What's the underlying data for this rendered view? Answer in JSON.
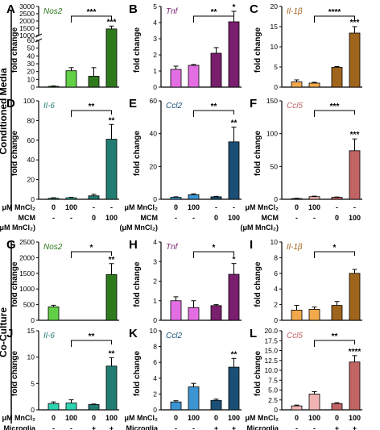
{
  "section_labels": [
    "Conditioned Media",
    "Co-Culture"
  ],
  "row_labels": {
    "mncl2": "μM MnCl₂",
    "mcm": "MCM",
    "mcm_unit": "(μM MnCl₂)",
    "microglia": "Microglia"
  },
  "condition_values": {
    "cm_mncl2": [
      "0",
      "100",
      "-",
      "-"
    ],
    "cm_mcm": [
      "-",
      "-",
      "0",
      "100"
    ],
    "cc_mncl2": [
      "0",
      "100",
      "0",
      "100"
    ],
    "cc_microglia": [
      "-",
      "-",
      "+",
      "+"
    ]
  },
  "ylabel": "fold change",
  "colors": {
    "Nos2": [
      "#62d046",
      "#2f7a1d"
    ],
    "Tnf": [
      "#e36ee3",
      "#7a1e6e"
    ],
    "Il-1b": [
      "#f3a94b",
      "#a0651c"
    ],
    "Il-6": [
      "#2ed3b0",
      "#217d72"
    ],
    "Ccl2": [
      "#3c95d2",
      "#1b4f75"
    ],
    "Ccl5": [
      "#f0b2b2",
      "#c16464"
    ]
  },
  "chart_data": [
    {
      "panel": "A",
      "type": "bar",
      "gene": "Nos2",
      "title": "Nos2",
      "ylabel": "fold change",
      "broken_axis": true,
      "ylim_low": [
        0,
        60
      ],
      "ylim_high": [
        1000,
        3000
      ],
      "yticks_low": [
        "0",
        "10",
        "20",
        "30",
        "40",
        "50",
        "60"
      ],
      "yticks_high": [
        "1000",
        "1500",
        "2000",
        "2500",
        "3000"
      ],
      "values": [
        1,
        21,
        14,
        1450
      ],
      "errors": [
        0.5,
        4,
        11,
        200
      ],
      "sig_bracket": "***",
      "sig_star": "***"
    },
    {
      "panel": "B",
      "type": "bar",
      "gene": "Tnf",
      "title": "Tnf",
      "ylabel": "fold change",
      "ylim": [
        0,
        5
      ],
      "yticks": [
        "0",
        "1",
        "2",
        "3",
        "4",
        "5"
      ],
      "values": [
        1.1,
        1.35,
        2.1,
        4.05
      ],
      "errors": [
        0.2,
        0.05,
        0.35,
        0.65
      ],
      "sig_bracket": "**",
      "sig_star": "*"
    },
    {
      "panel": "C",
      "type": "bar",
      "gene": "Il-1b",
      "title": "Il-1β",
      "ylabel": "fold change",
      "ylim": [
        0,
        20
      ],
      "yticks": [
        "0",
        "5",
        "10",
        "15",
        "20"
      ],
      "values": [
        1.3,
        1.0,
        4.9,
        13.4
      ],
      "errors": [
        0.5,
        0.2,
        0.2,
        1.6
      ],
      "sig_bracket": "****",
      "sig_star": "***"
    },
    {
      "panel": "D",
      "type": "bar",
      "gene": "Il-6",
      "title": "Il-6",
      "ylabel": "fold change",
      "ylim": [
        0,
        100
      ],
      "yticks": [
        "0",
        "20",
        "40",
        "60",
        "80",
        "100"
      ],
      "values": [
        1,
        1.5,
        3.5,
        61
      ],
      "errors": [
        0.5,
        0.5,
        1.5,
        15
      ],
      "sig_bracket": "**",
      "sig_star": "**"
    },
    {
      "panel": "E",
      "type": "bar",
      "gene": "Ccl2",
      "title": "Ccl2",
      "ylabel": "fold change",
      "ylim": [
        0,
        60
      ],
      "yticks": [
        "0",
        "20",
        "40",
        "60"
      ],
      "values": [
        1.2,
        2.8,
        1.5,
        35
      ],
      "errors": [
        0.3,
        0.5,
        0.3,
        9
      ],
      "sig_bracket": "**",
      "sig_star": "**"
    },
    {
      "panel": "F",
      "type": "bar",
      "gene": "Ccl5",
      "title": "Ccl5",
      "ylabel": "fold change",
      "ylim": [
        0,
        150
      ],
      "yticks": [
        "0",
        "50",
        "100",
        "150"
      ],
      "values": [
        1,
        4,
        3,
        74
      ],
      "errors": [
        0.5,
        0.8,
        0.5,
        18
      ],
      "sig_bracket": "***",
      "sig_star": "***"
    },
    {
      "panel": "G",
      "type": "bar",
      "gene": "Nos2",
      "title": "Nos2",
      "ylabel": "fold change",
      "ylim": [
        0,
        2500
      ],
      "yticks": [
        "0",
        "500",
        "1000",
        "1500",
        "2000",
        "2500"
      ],
      "values": [
        430,
        0,
        0,
        1460
      ],
      "errors": [
        50,
        0,
        0,
        350
      ],
      "sig_bracket": "*",
      "sig_star": "**"
    },
    {
      "panel": "H",
      "type": "bar",
      "gene": "Tnf",
      "title": "Tnf",
      "ylabel": "fold change",
      "ylim": [
        0,
        4
      ],
      "yticks": [
        "0",
        "1",
        "2",
        "3",
        "4"
      ],
      "values": [
        1.0,
        0.65,
        0.75,
        2.35
      ],
      "errors": [
        0.2,
        0.35,
        0.05,
        0.55
      ],
      "sig_bracket": "*",
      "sig_star": "*"
    },
    {
      "panel": "I",
      "type": "bar",
      "gene": "Il-1b",
      "title": "Il-1β",
      "ylabel": "fold change",
      "ylim": [
        0,
        10
      ],
      "yticks": [
        "0",
        "2",
        "4",
        "6",
        "8",
        "10"
      ],
      "values": [
        1.3,
        1.4,
        1.9,
        6.0
      ],
      "errors": [
        0.6,
        0.3,
        0.5,
        0.5
      ],
      "sig_bracket": "*",
      "sig_star": ""
    },
    {
      "panel": "J",
      "type": "bar",
      "gene": "Il-6",
      "title": "Il-6",
      "ylabel": "fold change",
      "ylim": [
        0,
        15
      ],
      "yticks": [
        "0",
        "5",
        "10",
        "15"
      ],
      "values": [
        1.2,
        1.3,
        1.0,
        8.3
      ],
      "errors": [
        0.3,
        0.6,
        0.1,
        1.6
      ],
      "sig_bracket": "**",
      "sig_star": "**"
    },
    {
      "panel": "K",
      "type": "bar",
      "gene": "Ccl2",
      "title": "Ccl2",
      "ylabel": "fold change",
      "ylim": [
        0,
        10
      ],
      "yticks": [
        "0",
        "2",
        "4",
        "6",
        "8",
        "10"
      ],
      "values": [
        1.0,
        2.9,
        1.2,
        5.4
      ],
      "errors": [
        0.15,
        0.45,
        0.15,
        1.1
      ],
      "sig_bracket": "",
      "sig_star": "**"
    },
    {
      "panel": "L",
      "type": "bar",
      "gene": "Ccl5",
      "title": "Ccl5",
      "ylabel": "fold change",
      "ylim": [
        0,
        20
      ],
      "yticks": [
        "0",
        "2.5",
        "5.0",
        "7.5",
        "10.0",
        "12.5",
        "15.0",
        "17.5",
        "20.0"
      ],
      "values": [
        1.0,
        4.0,
        1.6,
        12.1
      ],
      "errors": [
        0.2,
        0.6,
        0.2,
        1.6
      ],
      "sig_bracket": "**",
      "sig_star": "****"
    }
  ]
}
